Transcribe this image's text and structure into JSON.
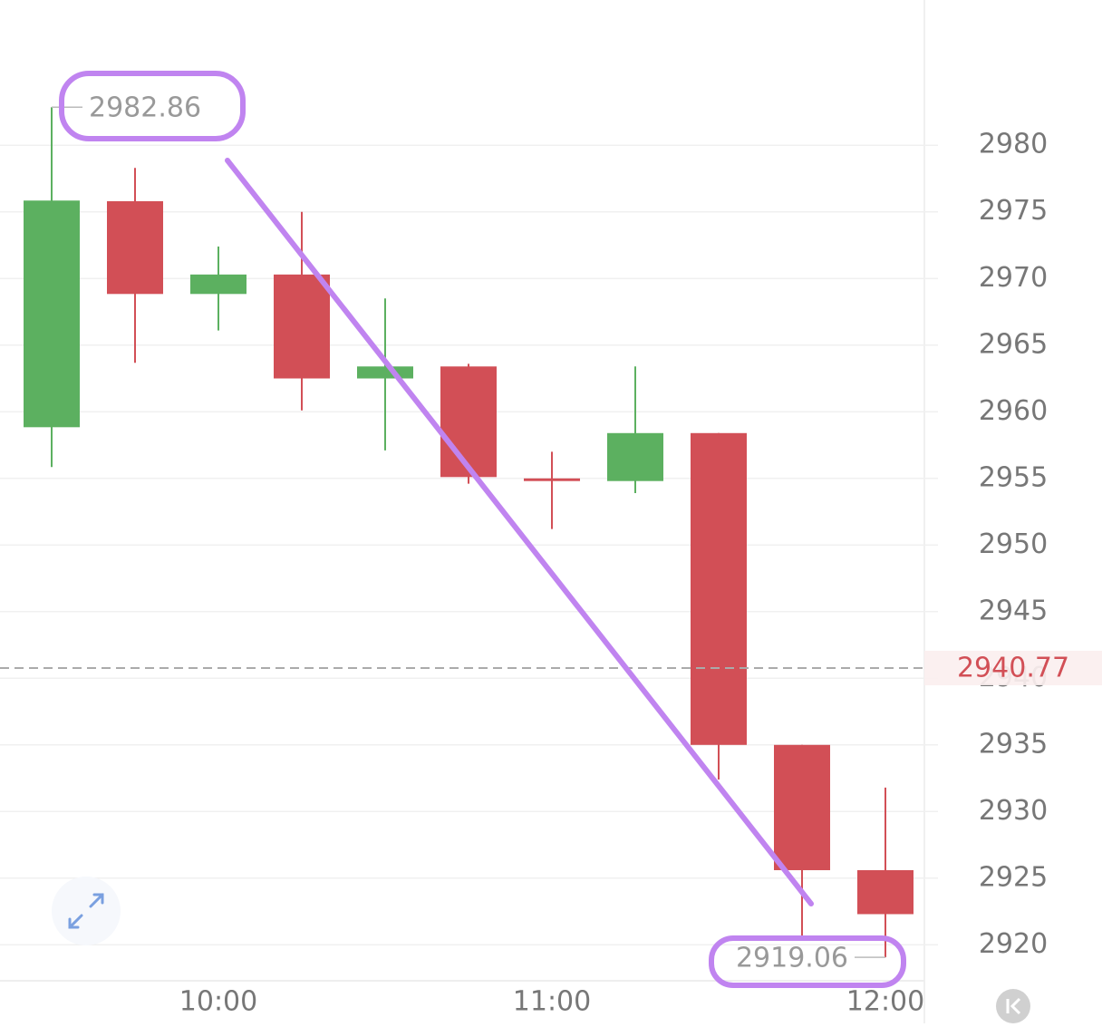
{
  "chart_data": {
    "type": "candlestick",
    "categories": [
      null,
      null,
      "10:00",
      null,
      null,
      null,
      "11:00",
      null,
      null,
      null,
      "12:00"
    ],
    "open": [
      2958.84,
      2975.8,
      2968.84,
      2970.3,
      2962.5,
      2963.4,
      2955.0,
      2954.8,
      2958.4,
      2935.0,
      2925.6
    ],
    "high": [
      2982.86,
      2978.3,
      2972.4,
      2975.0,
      2968.5,
      2963.6,
      2957.0,
      2963.4,
      2958.4,
      2935.0,
      2931.8
    ],
    "low": [
      2955.85,
      2963.67,
      2966.1,
      2960.1,
      2957.1,
      2954.6,
      2951.2,
      2953.9,
      2932.4,
      2920.5,
      2919.06
    ],
    "close": [
      2975.85,
      2968.84,
      2970.3,
      2962.5,
      2963.4,
      2955.1,
      2954.8,
      2958.4,
      2935.0,
      2925.6,
      2922.3
    ],
    "up_color": "#5cb060",
    "down_color": "#d24f56",
    "ylim": [
      2917.3,
      2990.9
    ],
    "yticks": [
      2920,
      2925,
      2930,
      2935,
      2940,
      2945,
      2950,
      2955,
      2960,
      2965,
      2970,
      2975,
      2980
    ],
    "grid": true,
    "last_price": 2940.77,
    "high_mark": {
      "index": 0
    },
    "low_mark": {
      "index": 10
    }
  }
}
